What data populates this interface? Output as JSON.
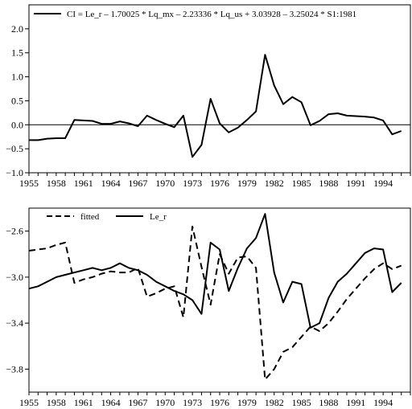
{
  "chart_data": [
    {
      "type": "line",
      "legend": {
        "placement": "top",
        "text": "CI = Le_r – 1.70025 * Lq_mx – 2.23336 * Lq_us + 3.03928 – 3.25024 * S1:1981"
      },
      "ylim": [
        -1.0,
        2.5
      ],
      "yticks": [
        -1.0,
        -0.5,
        0.0,
        0.5,
        1.0,
        1.5,
        2.0
      ],
      "ytick_labels": [
        "−1.0",
        "−0.5",
        "0.0",
        "0.5",
        "1.0",
        "1.5",
        "2.0"
      ],
      "xlim": [
        1955,
        1997
      ],
      "xticks": [
        1955,
        1958,
        1961,
        1964,
        1967,
        1970,
        1973,
        1976,
        1979,
        1982,
        1985,
        1988,
        1991,
        1994
      ],
      "zero_line": true,
      "grid": false,
      "series": [
        {
          "name": "CI",
          "style": "solid",
          "x": [
            1955,
            1956,
            1957,
            1958,
            1959,
            1960,
            1961,
            1962,
            1963,
            1964,
            1965,
            1966,
            1967,
            1968,
            1969,
            1970,
            1971,
            1972,
            1973,
            1974,
            1975,
            1976,
            1977,
            1978,
            1979,
            1980,
            1981,
            1982,
            1983,
            1984,
            1985,
            1986,
            1987,
            1988,
            1989,
            1990,
            1991,
            1992,
            1993,
            1994,
            1995,
            1996
          ],
          "values": [
            -0.32,
            -0.32,
            -0.29,
            -0.28,
            -0.28,
            0.1,
            0.09,
            0.08,
            0.02,
            0.02,
            0.07,
            0.03,
            -0.03,
            0.19,
            0.1,
            0.02,
            -0.05,
            0.19,
            -0.67,
            -0.42,
            0.54,
            0.03,
            -0.16,
            -0.06,
            0.1,
            0.28,
            1.46,
            0.82,
            0.43,
            0.58,
            0.47,
            -0.01,
            0.08,
            0.22,
            0.24,
            0.19,
            0.18,
            0.17,
            0.15,
            0.09,
            -0.2,
            -0.13
          ]
        }
      ]
    },
    {
      "type": "line",
      "legend": {
        "placement": "top-left"
      },
      "ylim": [
        -4.0,
        -2.4
      ],
      "yticks": [
        -3.8,
        -3.4,
        -3.0,
        -2.6
      ],
      "ytick_labels": [
        "−3.8",
        "−3.4",
        "−3.0",
        "−2.6"
      ],
      "xlim": [
        1955,
        1997
      ],
      "xticks": [
        1955,
        1958,
        1961,
        1964,
        1967,
        1970,
        1973,
        1976,
        1979,
        1982,
        1985,
        1988,
        1991,
        1994
      ],
      "grid": false,
      "x": [
        1955,
        1956,
        1957,
        1958,
        1959,
        1960,
        1961,
        1962,
        1963,
        1964,
        1965,
        1966,
        1967,
        1968,
        1969,
        1970,
        1971,
        1972,
        1973,
        1974,
        1975,
        1976,
        1977,
        1978,
        1979,
        1980,
        1981,
        1982,
        1983,
        1984,
        1985,
        1986,
        1987,
        1988,
        1989,
        1990,
        1991,
        1992,
        1993,
        1994,
        1995,
        1996
      ],
      "series": [
        {
          "name": "fitted",
          "style": "dashed",
          "values": [
            -2.77,
            -2.76,
            -2.75,
            -2.72,
            -2.7,
            -3.05,
            -3.02,
            -3.0,
            -2.97,
            -2.95,
            -2.96,
            -2.96,
            -2.92,
            -3.17,
            -3.14,
            -3.1,
            -3.08,
            -3.35,
            -2.56,
            -2.91,
            -3.24,
            -2.8,
            -2.97,
            -2.83,
            -2.82,
            -2.92,
            -3.89,
            -3.8,
            -3.65,
            -3.61,
            -3.52,
            -3.43,
            -3.47,
            -3.4,
            -3.3,
            -3.19,
            -3.1,
            -3.01,
            -2.93,
            -2.88,
            -2.93,
            -2.9
          ]
        },
        {
          "name": "Le_r",
          "style": "solid",
          "values": [
            -3.1,
            -3.08,
            -3.04,
            -3.0,
            -2.98,
            -2.96,
            -2.94,
            -2.92,
            -2.94,
            -2.92,
            -2.88,
            -2.92,
            -2.94,
            -2.98,
            -3.04,
            -3.08,
            -3.12,
            -3.15,
            -3.2,
            -3.32,
            -2.7,
            -2.76,
            -3.12,
            -2.92,
            -2.75,
            -2.66,
            -2.45,
            -2.96,
            -3.22,
            -3.04,
            -3.06,
            -3.44,
            -3.4,
            -3.18,
            -3.04,
            -2.97,
            -2.88,
            -2.79,
            -2.75,
            -2.76,
            -3.13,
            -3.05
          ]
        }
      ]
    }
  ]
}
